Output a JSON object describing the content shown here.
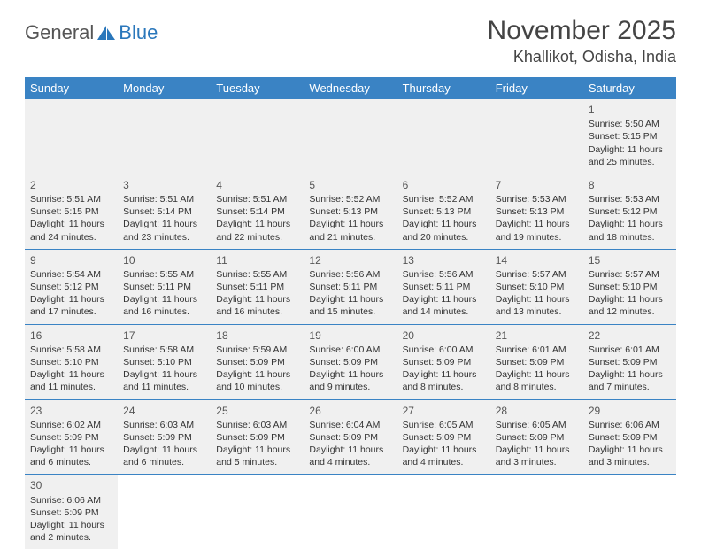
{
  "logo": {
    "text1": "General",
    "text2": "Blue"
  },
  "title": "November 2025",
  "location": "Khallikot, Odisha, India",
  "colors": {
    "header_bg": "#3a83c4",
    "header_text": "#ffffff",
    "cell_bg": "#f0f0f0",
    "row_divider": "#3a83c4",
    "text": "#333333",
    "logo_gray": "#555555",
    "logo_blue": "#2a77bb"
  },
  "layout": {
    "columns": 7,
    "rows": 6,
    "start_weekday": "Sunday"
  },
  "day_headers": [
    "Sunday",
    "Monday",
    "Tuesday",
    "Wednesday",
    "Thursday",
    "Friday",
    "Saturday"
  ],
  "weeks": [
    [
      null,
      null,
      null,
      null,
      null,
      null,
      {
        "day": "1",
        "sunrise": "Sunrise: 5:50 AM",
        "sunset": "Sunset: 5:15 PM",
        "daylight": "Daylight: 11 hours and 25 minutes."
      }
    ],
    [
      {
        "day": "2",
        "sunrise": "Sunrise: 5:51 AM",
        "sunset": "Sunset: 5:15 PM",
        "daylight": "Daylight: 11 hours and 24 minutes."
      },
      {
        "day": "3",
        "sunrise": "Sunrise: 5:51 AM",
        "sunset": "Sunset: 5:14 PM",
        "daylight": "Daylight: 11 hours and 23 minutes."
      },
      {
        "day": "4",
        "sunrise": "Sunrise: 5:51 AM",
        "sunset": "Sunset: 5:14 PM",
        "daylight": "Daylight: 11 hours and 22 minutes."
      },
      {
        "day": "5",
        "sunrise": "Sunrise: 5:52 AM",
        "sunset": "Sunset: 5:13 PM",
        "daylight": "Daylight: 11 hours and 21 minutes."
      },
      {
        "day": "6",
        "sunrise": "Sunrise: 5:52 AM",
        "sunset": "Sunset: 5:13 PM",
        "daylight": "Daylight: 11 hours and 20 minutes."
      },
      {
        "day": "7",
        "sunrise": "Sunrise: 5:53 AM",
        "sunset": "Sunset: 5:13 PM",
        "daylight": "Daylight: 11 hours and 19 minutes."
      },
      {
        "day": "8",
        "sunrise": "Sunrise: 5:53 AM",
        "sunset": "Sunset: 5:12 PM",
        "daylight": "Daylight: 11 hours and 18 minutes."
      }
    ],
    [
      {
        "day": "9",
        "sunrise": "Sunrise: 5:54 AM",
        "sunset": "Sunset: 5:12 PM",
        "daylight": "Daylight: 11 hours and 17 minutes."
      },
      {
        "day": "10",
        "sunrise": "Sunrise: 5:55 AM",
        "sunset": "Sunset: 5:11 PM",
        "daylight": "Daylight: 11 hours and 16 minutes."
      },
      {
        "day": "11",
        "sunrise": "Sunrise: 5:55 AM",
        "sunset": "Sunset: 5:11 PM",
        "daylight": "Daylight: 11 hours and 16 minutes."
      },
      {
        "day": "12",
        "sunrise": "Sunrise: 5:56 AM",
        "sunset": "Sunset: 5:11 PM",
        "daylight": "Daylight: 11 hours and 15 minutes."
      },
      {
        "day": "13",
        "sunrise": "Sunrise: 5:56 AM",
        "sunset": "Sunset: 5:11 PM",
        "daylight": "Daylight: 11 hours and 14 minutes."
      },
      {
        "day": "14",
        "sunrise": "Sunrise: 5:57 AM",
        "sunset": "Sunset: 5:10 PM",
        "daylight": "Daylight: 11 hours and 13 minutes."
      },
      {
        "day": "15",
        "sunrise": "Sunrise: 5:57 AM",
        "sunset": "Sunset: 5:10 PM",
        "daylight": "Daylight: 11 hours and 12 minutes."
      }
    ],
    [
      {
        "day": "16",
        "sunrise": "Sunrise: 5:58 AM",
        "sunset": "Sunset: 5:10 PM",
        "daylight": "Daylight: 11 hours and 11 minutes."
      },
      {
        "day": "17",
        "sunrise": "Sunrise: 5:58 AM",
        "sunset": "Sunset: 5:10 PM",
        "daylight": "Daylight: 11 hours and 11 minutes."
      },
      {
        "day": "18",
        "sunrise": "Sunrise: 5:59 AM",
        "sunset": "Sunset: 5:09 PM",
        "daylight": "Daylight: 11 hours and 10 minutes."
      },
      {
        "day": "19",
        "sunrise": "Sunrise: 6:00 AM",
        "sunset": "Sunset: 5:09 PM",
        "daylight": "Daylight: 11 hours and 9 minutes."
      },
      {
        "day": "20",
        "sunrise": "Sunrise: 6:00 AM",
        "sunset": "Sunset: 5:09 PM",
        "daylight": "Daylight: 11 hours and 8 minutes."
      },
      {
        "day": "21",
        "sunrise": "Sunrise: 6:01 AM",
        "sunset": "Sunset: 5:09 PM",
        "daylight": "Daylight: 11 hours and 8 minutes."
      },
      {
        "day": "22",
        "sunrise": "Sunrise: 6:01 AM",
        "sunset": "Sunset: 5:09 PM",
        "daylight": "Daylight: 11 hours and 7 minutes."
      }
    ],
    [
      {
        "day": "23",
        "sunrise": "Sunrise: 6:02 AM",
        "sunset": "Sunset: 5:09 PM",
        "daylight": "Daylight: 11 hours and 6 minutes."
      },
      {
        "day": "24",
        "sunrise": "Sunrise: 6:03 AM",
        "sunset": "Sunset: 5:09 PM",
        "daylight": "Daylight: 11 hours and 6 minutes."
      },
      {
        "day": "25",
        "sunrise": "Sunrise: 6:03 AM",
        "sunset": "Sunset: 5:09 PM",
        "daylight": "Daylight: 11 hours and 5 minutes."
      },
      {
        "day": "26",
        "sunrise": "Sunrise: 6:04 AM",
        "sunset": "Sunset: 5:09 PM",
        "daylight": "Daylight: 11 hours and 4 minutes."
      },
      {
        "day": "27",
        "sunrise": "Sunrise: 6:05 AM",
        "sunset": "Sunset: 5:09 PM",
        "daylight": "Daylight: 11 hours and 4 minutes."
      },
      {
        "day": "28",
        "sunrise": "Sunrise: 6:05 AM",
        "sunset": "Sunset: 5:09 PM",
        "daylight": "Daylight: 11 hours and 3 minutes."
      },
      {
        "day": "29",
        "sunrise": "Sunrise: 6:06 AM",
        "sunset": "Sunset: 5:09 PM",
        "daylight": "Daylight: 11 hours and 3 minutes."
      }
    ],
    [
      {
        "day": "30",
        "sunrise": "Sunrise: 6:06 AM",
        "sunset": "Sunset: 5:09 PM",
        "daylight": "Daylight: 11 hours and 2 minutes."
      },
      null,
      null,
      null,
      null,
      null,
      null
    ]
  ]
}
